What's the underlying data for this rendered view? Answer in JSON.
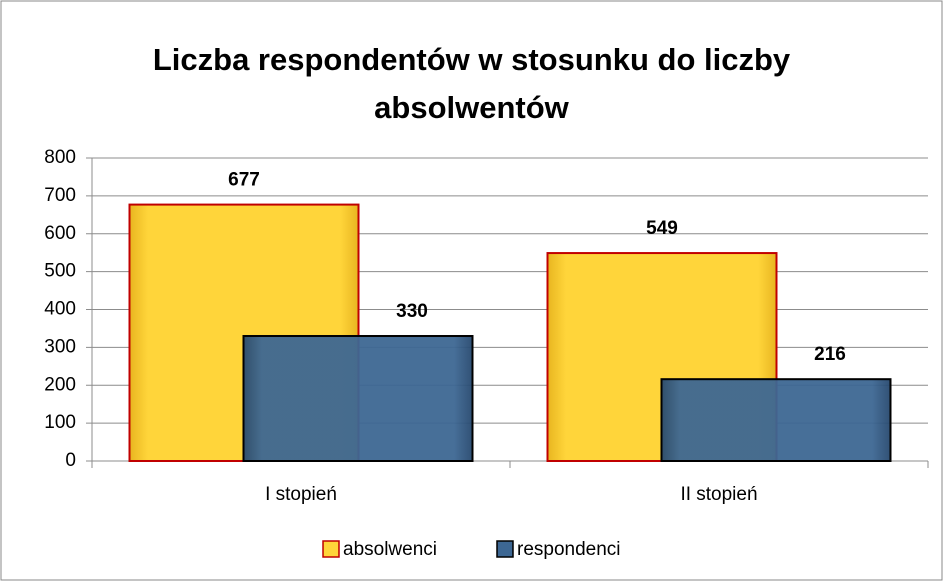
{
  "chart_data": {
    "type": "bar",
    "title": "Liczba respondentów w stosunku do liczby absolwentów",
    "categories": [
      "I stopień",
      "II stopień"
    ],
    "series": [
      {
        "name": "absolwenci",
        "color": "#ffd53a",
        "values": [
          677,
          549
        ]
      },
      {
        "name": "respondenci",
        "color": "#3d6793",
        "values": [
          330,
          216
        ]
      }
    ],
    "ylim": [
      0,
      800
    ],
    "yticks": [
      0,
      100,
      200,
      300,
      400,
      500,
      600,
      700,
      800
    ],
    "grid": true,
    "legend": "bottom"
  }
}
